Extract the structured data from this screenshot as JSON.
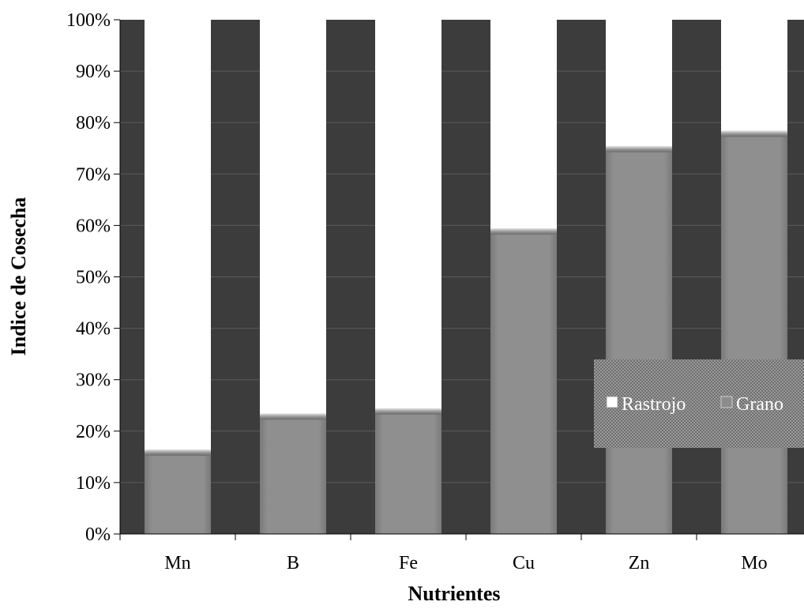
{
  "chart_data": {
    "type": "bar",
    "stacked": true,
    "percent_stacked": true,
    "categories": [
      "Mn",
      "B",
      "Fe",
      "Cu",
      "Zn",
      "Mo"
    ],
    "series": [
      {
        "name": "Grano",
        "values": [
          16,
          23,
          24,
          59,
          75,
          78
        ],
        "color": "#8c8c8c"
      },
      {
        "name": "Rastrojo",
        "values": [
          84,
          77,
          76,
          41,
          25,
          22
        ],
        "color": "#ffffff"
      }
    ],
    "xlabel": "Nutrientes",
    "ylabel": "Indice de Cosecha",
    "ylim": [
      0,
      100
    ],
    "yticks": [
      "0%",
      "10%",
      "20%",
      "30%",
      "40%",
      "50%",
      "60%",
      "70%",
      "80%",
      "90%",
      "100%"
    ],
    "grid": true,
    "plot_background": "#3c3c3c",
    "legend": {
      "position": "right",
      "entries": [
        "Rastrojo",
        "Grano"
      ]
    }
  }
}
